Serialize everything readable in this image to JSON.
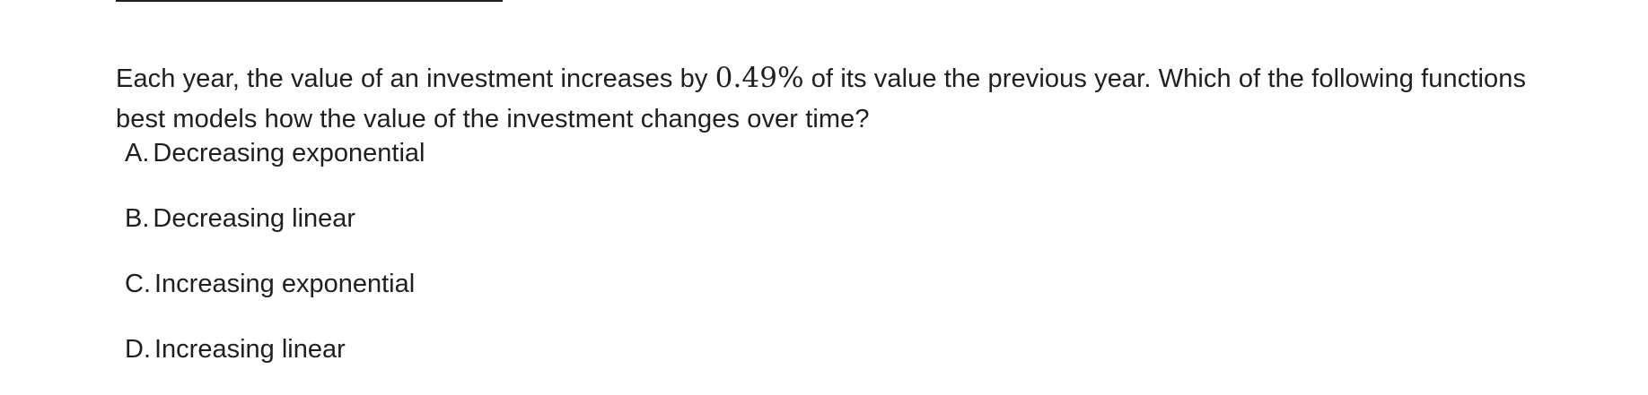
{
  "question": {
    "before": "Each year, the value of an investment increases by ",
    "math": "0.49%",
    "after": " of its value the previous year. Which of the following functions best models how the value of the investment changes over time?"
  },
  "choices": [
    {
      "letter": "A.",
      "text": "Decreasing exponential"
    },
    {
      "letter": "B.",
      "text": "Decreasing linear"
    },
    {
      "letter": "C.",
      "text": "Increasing exponential"
    },
    {
      "letter": "D.",
      "text": "Increasing linear"
    }
  ]
}
